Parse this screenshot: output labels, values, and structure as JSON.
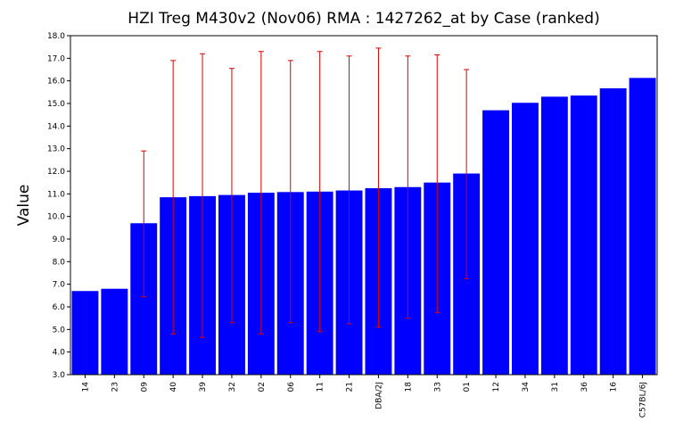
{
  "chart_data": {
    "type": "bar",
    "title": "HZI Treg M430v2 (Nov06) RMA : 1427262_at by Case (ranked)",
    "xlabel": "",
    "ylabel": "Value",
    "ylim": [
      3.0,
      18.0
    ],
    "yticks": [
      "3.0",
      "4.0",
      "5.0",
      "6.0",
      "7.0",
      "8.0",
      "9.0",
      "10.0",
      "11.0",
      "12.0",
      "13.0",
      "14.0",
      "15.0",
      "16.0",
      "17.0",
      "18.0"
    ],
    "categories": [
      "14",
      "23",
      "09",
      "40",
      "39",
      "32",
      "02",
      "06",
      "11",
      "21",
      "DBA/2J",
      "18",
      "33",
      "01",
      "12",
      "34",
      "31",
      "36",
      "16",
      "C57BL/6J"
    ],
    "values": [
      6.7,
      6.8,
      9.7,
      10.85,
      10.9,
      10.95,
      11.05,
      11.08,
      11.1,
      11.15,
      11.25,
      11.3,
      11.5,
      11.9,
      14.7,
      15.03,
      15.3,
      15.35,
      15.67,
      16.13
    ],
    "error_low": [
      null,
      null,
      6.45,
      4.8,
      4.65,
      5.3,
      4.8,
      5.3,
      4.9,
      5.25,
      5.1,
      5.5,
      5.75,
      7.25,
      null,
      null,
      null,
      null,
      null,
      null
    ],
    "error_high": [
      null,
      null,
      12.9,
      16.9,
      17.2,
      16.55,
      17.3,
      16.9,
      17.3,
      17.1,
      17.45,
      17.1,
      17.15,
      16.5,
      null,
      null,
      null,
      null,
      null,
      null
    ],
    "bar_color": "#0000ff",
    "error_color": "#dd0000",
    "grid": false,
    "legend": "none"
  }
}
